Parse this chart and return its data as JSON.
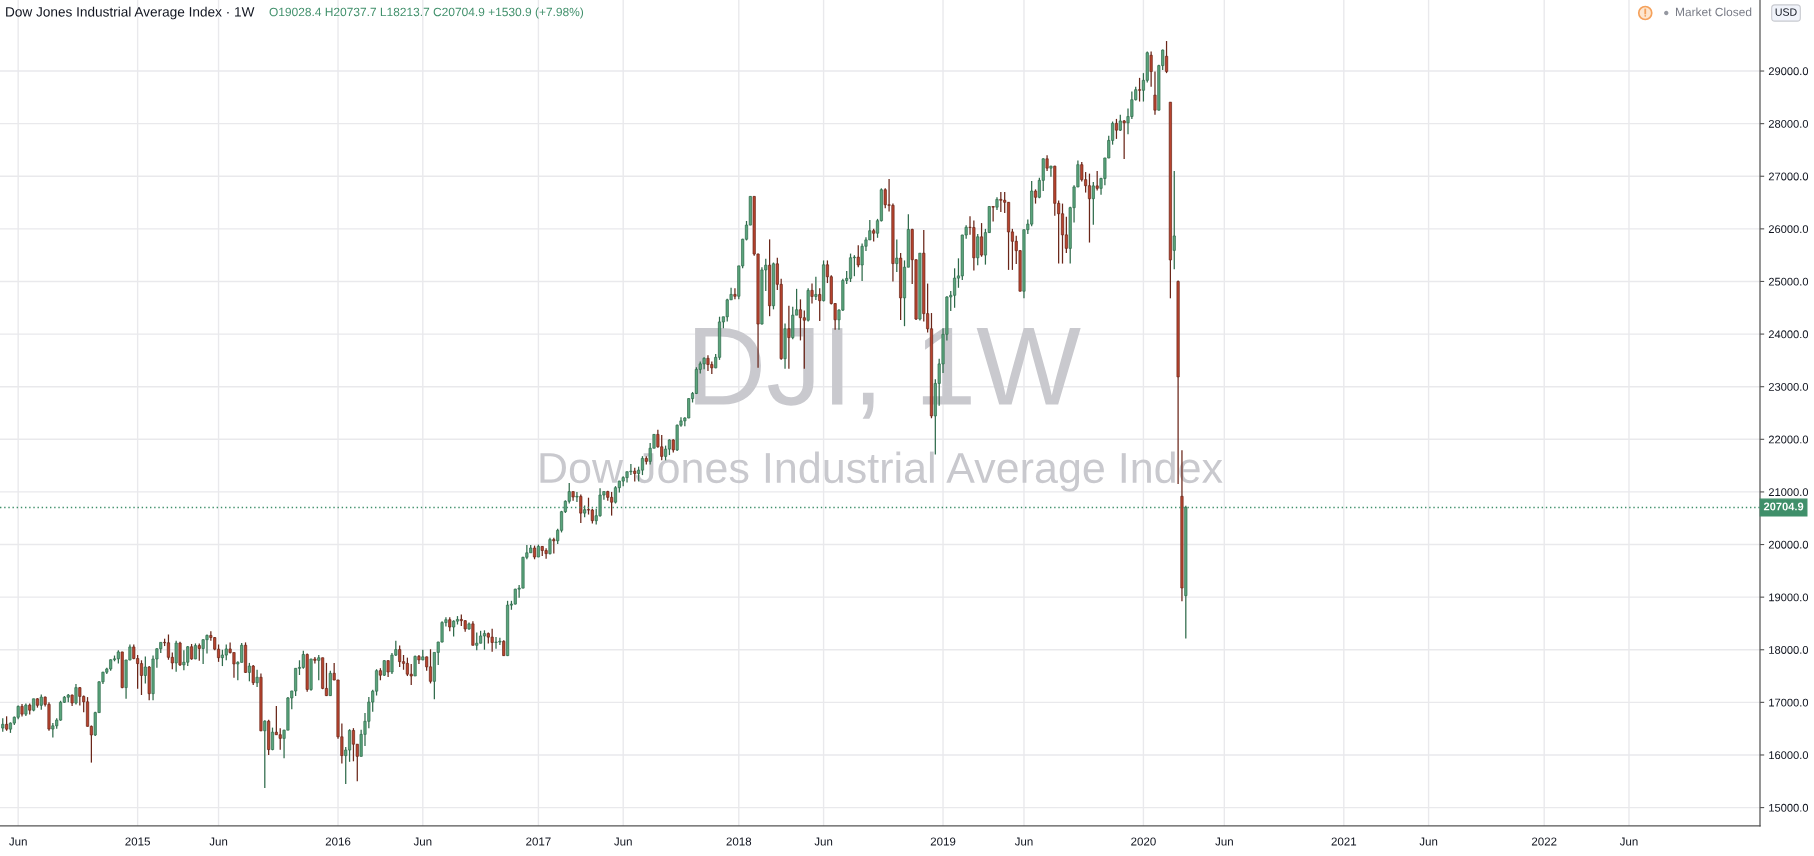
{
  "chart_data": {
    "type": "candlestick",
    "title": "Dow Jones Industrial Average Index · 1W",
    "subtitle": "O19028.4 H20737.7 L18213.7 C20704.9 +1530.9 (+7.98%)",
    "ylabel": "USD",
    "annotations": [
      "Market Closed",
      "DJI, 1W",
      "Dow Jones Industrial Average Index"
    ],
    "xlim": [
      "2014-04-30",
      "2023-01-30"
    ],
    "ylim": [
      14650,
      30350
    ],
    "xticks": [
      {
        "value": "2014-06-02",
        "label": "Jun"
      },
      {
        "value": "2015-01-05",
        "label": "2015"
      },
      {
        "value": "2015-06-01",
        "label": "Jun"
      },
      {
        "value": "2016-01-04",
        "label": "2016"
      },
      {
        "value": "2016-06-06",
        "label": "Jun"
      },
      {
        "value": "2017-01-02",
        "label": "2017"
      },
      {
        "value": "2017-06-05",
        "label": "Jun"
      },
      {
        "value": "2018-01-01",
        "label": "2018"
      },
      {
        "value": "2018-06-04",
        "label": "Jun"
      },
      {
        "value": "2019-01-07",
        "label": "2019"
      },
      {
        "value": "2019-06-03",
        "label": "Jun"
      },
      {
        "value": "2020-01-06",
        "label": "2020"
      },
      {
        "value": "2020-06-01",
        "label": "Jun"
      },
      {
        "value": "2021-01-04",
        "label": "2021"
      },
      {
        "value": "2021-06-07",
        "label": "Jun"
      },
      {
        "value": "2022-01-03",
        "label": "2022"
      },
      {
        "value": "2022-06-06",
        "label": "Jun"
      }
    ],
    "yticks": [
      {
        "value": 15000,
        "label": "15000.0"
      },
      {
        "value": 16000,
        "label": "16000.0"
      },
      {
        "value": 17000,
        "label": "17000.0"
      },
      {
        "value": 18000,
        "label": "18000.0"
      },
      {
        "value": 19000,
        "label": "19000.0"
      },
      {
        "value": 20000,
        "label": "20000.0"
      },
      {
        "value": 21000,
        "label": "21000.0"
      },
      {
        "value": 22000,
        "label": "22000.0"
      },
      {
        "value": 23000,
        "label": "23000.0"
      },
      {
        "value": 24000,
        "label": "24000.0"
      },
      {
        "value": 25000,
        "label": "25000.0"
      },
      {
        "value": 26000,
        "label": "26000.0"
      },
      {
        "value": 27000,
        "label": "27000.0"
      },
      {
        "value": 28000,
        "label": "28000.0"
      },
      {
        "value": 29000,
        "label": "29000.0"
      }
    ],
    "grid": true,
    "ref_lines": [
      {
        "axis": "y",
        "value": 20704.9,
        "label": "20704.9",
        "color": "#3f8f6a",
        "line_style": "dotted"
      }
    ],
    "x": [
      "2014-05-05",
      "2014-05-12",
      "2014-05-19",
      "2014-05-26",
      "2014-06-02",
      "2014-06-09",
      "2014-06-16",
      "2014-06-23",
      "2014-06-30",
      "2014-07-07",
      "2014-07-14",
      "2014-07-21",
      "2014-07-28",
      "2014-08-04",
      "2014-08-11",
      "2014-08-18",
      "2014-08-25",
      "2014-09-01",
      "2014-09-08",
      "2014-09-15",
      "2014-09-22",
      "2014-09-29",
      "2014-10-06",
      "2014-10-13",
      "2014-10-20",
      "2014-10-27",
      "2014-11-03",
      "2014-11-10",
      "2014-11-17",
      "2014-11-24",
      "2014-12-01",
      "2014-12-08",
      "2014-12-15",
      "2014-12-22",
      "2014-12-29",
      "2015-01-05",
      "2015-01-12",
      "2015-01-19",
      "2015-01-26",
      "2015-02-02",
      "2015-02-09",
      "2015-02-16",
      "2015-02-23",
      "2015-03-02",
      "2015-03-09",
      "2015-03-16",
      "2015-03-23",
      "2015-03-30",
      "2015-04-06",
      "2015-04-13",
      "2015-04-20",
      "2015-04-27",
      "2015-05-04",
      "2015-05-11",
      "2015-05-18",
      "2015-05-25",
      "2015-06-01",
      "2015-06-08",
      "2015-06-15",
      "2015-06-22",
      "2015-06-29",
      "2015-07-06",
      "2015-07-13",
      "2015-07-20",
      "2015-07-27",
      "2015-08-03",
      "2015-08-10",
      "2015-08-17",
      "2015-08-24",
      "2015-08-31",
      "2015-09-07",
      "2015-09-14",
      "2015-09-21",
      "2015-09-28",
      "2015-10-05",
      "2015-10-12",
      "2015-10-19",
      "2015-10-26",
      "2015-11-02",
      "2015-11-09",
      "2015-11-16",
      "2015-11-23",
      "2015-11-30",
      "2015-12-07",
      "2015-12-14",
      "2015-12-21",
      "2015-12-28",
      "2016-01-04",
      "2016-01-11",
      "2016-01-18",
      "2016-01-25",
      "2016-02-01",
      "2016-02-08",
      "2016-02-15",
      "2016-02-22",
      "2016-02-29",
      "2016-03-07",
      "2016-03-14",
      "2016-03-21",
      "2016-03-28",
      "2016-04-04",
      "2016-04-11",
      "2016-04-18",
      "2016-04-25",
      "2016-05-02",
      "2016-05-09",
      "2016-05-16",
      "2016-05-23",
      "2016-05-30",
      "2016-06-06",
      "2016-06-13",
      "2016-06-20",
      "2016-06-27",
      "2016-07-04",
      "2016-07-11",
      "2016-07-18",
      "2016-07-25",
      "2016-08-01",
      "2016-08-08",
      "2016-08-15",
      "2016-08-22",
      "2016-08-29",
      "2016-09-05",
      "2016-09-12",
      "2016-09-19",
      "2016-09-26",
      "2016-10-03",
      "2016-10-10",
      "2016-10-17",
      "2016-10-24",
      "2016-10-31",
      "2016-11-07",
      "2016-11-14",
      "2016-11-21",
      "2016-11-28",
      "2016-12-05",
      "2016-12-12",
      "2016-12-19",
      "2016-12-26",
      "2017-01-02",
      "2017-01-09",
      "2017-01-16",
      "2017-01-23",
      "2017-01-30",
      "2017-02-06",
      "2017-02-13",
      "2017-02-20",
      "2017-02-27",
      "2017-03-06",
      "2017-03-13",
      "2017-03-20",
      "2017-03-27",
      "2017-04-03",
      "2017-04-10",
      "2017-04-17",
      "2017-04-24",
      "2017-05-01",
      "2017-05-08",
      "2017-05-15",
      "2017-05-22",
      "2017-05-29",
      "2017-06-05",
      "2017-06-12",
      "2017-06-19",
      "2017-06-26",
      "2017-07-03",
      "2017-07-10",
      "2017-07-17",
      "2017-07-24",
      "2017-07-31",
      "2017-08-07",
      "2017-08-14",
      "2017-08-21",
      "2017-08-28",
      "2017-09-04",
      "2017-09-11",
      "2017-09-18",
      "2017-09-25",
      "2017-10-02",
      "2017-10-09",
      "2017-10-16",
      "2017-10-23",
      "2017-10-30",
      "2017-11-06",
      "2017-11-13",
      "2017-11-20",
      "2017-11-27",
      "2017-12-04",
      "2017-12-11",
      "2017-12-18",
      "2017-12-25",
      "2018-01-01",
      "2018-01-08",
      "2018-01-15",
      "2018-01-22",
      "2018-01-29",
      "2018-02-05",
      "2018-02-12",
      "2018-02-19",
      "2018-02-26",
      "2018-03-05",
      "2018-03-12",
      "2018-03-19",
      "2018-03-26",
      "2018-04-02",
      "2018-04-09",
      "2018-04-16",
      "2018-04-23",
      "2018-04-30",
      "2018-05-07",
      "2018-05-14",
      "2018-05-21",
      "2018-05-28",
      "2018-06-04",
      "2018-06-11",
      "2018-06-18",
      "2018-06-25",
      "2018-07-02",
      "2018-07-09",
      "2018-07-16",
      "2018-07-23",
      "2018-07-30",
      "2018-08-06",
      "2018-08-13",
      "2018-08-20",
      "2018-08-27",
      "2018-09-03",
      "2018-09-10",
      "2018-09-17",
      "2018-09-24",
      "2018-10-01",
      "2018-10-08",
      "2018-10-15",
      "2018-10-22",
      "2018-10-29",
      "2018-11-05",
      "2018-11-12",
      "2018-11-19",
      "2018-11-26",
      "2018-12-03",
      "2018-12-10",
      "2018-12-17",
      "2018-12-24",
      "2018-12-31",
      "2019-01-07",
      "2019-01-14",
      "2019-01-21",
      "2019-01-28",
      "2019-02-04",
      "2019-02-11",
      "2019-02-18",
      "2019-02-25",
      "2019-03-04",
      "2019-03-11",
      "2019-03-18",
      "2019-03-25",
      "2019-04-01",
      "2019-04-08",
      "2019-04-15",
      "2019-04-22",
      "2019-04-29",
      "2019-05-06",
      "2019-05-13",
      "2019-05-20",
      "2019-05-27",
      "2019-06-03",
      "2019-06-10",
      "2019-06-17",
      "2019-06-24",
      "2019-07-01",
      "2019-07-08",
      "2019-07-15",
      "2019-07-22",
      "2019-07-29",
      "2019-08-05",
      "2019-08-12",
      "2019-08-19",
      "2019-08-26",
      "2019-09-02",
      "2019-09-09",
      "2019-09-16",
      "2019-09-23",
      "2019-09-30",
      "2019-10-07",
      "2019-10-14",
      "2019-10-21",
      "2019-10-28",
      "2019-11-04",
      "2019-11-11",
      "2019-11-18",
      "2019-11-25",
      "2019-12-02",
      "2019-12-09",
      "2019-12-16",
      "2019-12-23",
      "2019-12-30",
      "2020-01-06",
      "2020-01-13",
      "2020-01-20",
      "2020-01-27",
      "2020-02-03",
      "2020-02-10",
      "2020-02-17",
      "2020-02-24",
      "2020-03-02",
      "2020-03-09",
      "2020-03-16",
      "2020-03-23"
    ],
    "ohlc": [
      [
        16512,
        16700,
        16440,
        16583
      ],
      [
        16583,
        16735,
        16460,
        16491
      ],
      [
        16491,
        16620,
        16420,
        16606
      ],
      [
        16606,
        16730,
        16570,
        16717
      ],
      [
        16717,
        16940,
        16680,
        16924
      ],
      [
        16924,
        16970,
        16730,
        16776
      ],
      [
        16776,
        16980,
        16740,
        16948
      ],
      [
        16948,
        16980,
        16770,
        16851
      ],
      [
        16851,
        17070,
        16830,
        17068
      ],
      [
        17068,
        17080,
        16900,
        16944
      ],
      [
        16944,
        17150,
        16860,
        17100
      ],
      [
        17100,
        17110,
        16920,
        16961
      ],
      [
        16961,
        17000,
        16460,
        16493
      ],
      [
        16493,
        16610,
        16330,
        16554
      ],
      [
        16554,
        16700,
        16500,
        16663
      ],
      [
        16663,
        17030,
        16650,
        17001
      ],
      [
        17001,
        17120,
        16990,
        17098
      ],
      [
        17098,
        17160,
        17000,
        17138
      ],
      [
        17138,
        17150,
        16930,
        16988
      ],
      [
        16988,
        17350,
        16960,
        17280
      ],
      [
        17280,
        17290,
        16940,
        17113
      ],
      [
        17113,
        17130,
        16810,
        17010
      ],
      [
        17010,
        17100,
        16540,
        16544
      ],
      [
        16544,
        16560,
        15855,
        16380
      ],
      [
        16380,
        16820,
        16360,
        16805
      ],
      [
        16805,
        17400,
        16800,
        17391
      ],
      [
        17391,
        17580,
        17350,
        17573
      ],
      [
        17573,
        17660,
        17540,
        17635
      ],
      [
        17635,
        17820,
        17600,
        17810
      ],
      [
        17810,
        17890,
        17780,
        17828
      ],
      [
        17828,
        17990,
        17740,
        17958
      ],
      [
        17958,
        17960,
        17270,
        17281
      ],
      [
        17281,
        17810,
        17070,
        17805
      ],
      [
        17805,
        18100,
        17800,
        18053
      ],
      [
        18053,
        18100,
        17820,
        17833
      ],
      [
        17833,
        17900,
        17260,
        17737
      ],
      [
        17737,
        17800,
        17140,
        17511
      ],
      [
        17511,
        17870,
        17360,
        17672
      ],
      [
        17672,
        17690,
        17040,
        17165
      ],
      [
        17165,
        17890,
        17040,
        17824
      ],
      [
        17824,
        18030,
        17660,
        18019
      ],
      [
        18019,
        18140,
        17940,
        18140
      ],
      [
        18140,
        18210,
        18070,
        18133
      ],
      [
        18133,
        18290,
        17810,
        17856
      ],
      [
        17856,
        17950,
        17630,
        17749
      ],
      [
        17749,
        18170,
        17580,
        18128
      ],
      [
        18128,
        18150,
        17690,
        17713
      ],
      [
        17713,
        17990,
        17610,
        17763
      ],
      [
        17763,
        18070,
        17690,
        18057
      ],
      [
        18057,
        18110,
        17810,
        17826
      ],
      [
        17826,
        18120,
        17820,
        18080
      ],
      [
        18080,
        18120,
        17790,
        18024
      ],
      [
        18024,
        18200,
        17730,
        18191
      ],
      [
        18191,
        18290,
        17930,
        18272
      ],
      [
        18272,
        18350,
        18170,
        18232
      ],
      [
        18232,
        18240,
        17990,
        18011
      ],
      [
        18011,
        18100,
        17770,
        17849
      ],
      [
        17849,
        18000,
        17690,
        17899
      ],
      [
        17899,
        18100,
        17800,
        18015
      ],
      [
        18015,
        18140,
        17930,
        17947
      ],
      [
        17947,
        17950,
        17470,
        17730
      ],
      [
        17730,
        17780,
        17420,
        17760
      ],
      [
        17760,
        18130,
        17760,
        18086
      ],
      [
        18086,
        18140,
        17560,
        17569
      ],
      [
        17569,
        17750,
        17400,
        17690
      ],
      [
        17690,
        17710,
        17330,
        17373
      ],
      [
        17373,
        17620,
        17290,
        17477
      ],
      [
        17477,
        17550,
        16450,
        16460
      ],
      [
        16460,
        16660,
        15370,
        16643
      ],
      [
        16643,
        16670,
        16000,
        16102
      ],
      [
        16102,
        16520,
        16090,
        16433
      ],
      [
        16433,
        16930,
        16380,
        16385
      ],
      [
        16385,
        16510,
        16100,
        16315
      ],
      [
        16315,
        16480,
        15940,
        16472
      ],
      [
        16472,
        17100,
        16470,
        17084
      ],
      [
        17084,
        17220,
        16870,
        17216
      ],
      [
        17216,
        17650,
        17120,
        17647
      ],
      [
        17647,
        17800,
        17520,
        17664
      ],
      [
        17664,
        17980,
        17640,
        17910
      ],
      [
        17910,
        17930,
        17200,
        17245
      ],
      [
        17245,
        17830,
        17220,
        17824
      ],
      [
        17824,
        17860,
        17740,
        17798
      ],
      [
        17798,
        17900,
        17420,
        17848
      ],
      [
        17848,
        17850,
        17250,
        17265
      ],
      [
        17265,
        17750,
        17120,
        17128
      ],
      [
        17128,
        17600,
        17120,
        17553
      ],
      [
        17553,
        17750,
        17420,
        17425
      ],
      [
        17425,
        17430,
        16310,
        16346
      ],
      [
        16346,
        16600,
        15840,
        15988
      ],
      [
        15988,
        16150,
        15450,
        16094
      ],
      [
        16094,
        16490,
        15870,
        16466
      ],
      [
        16466,
        16510,
        15880,
        16205
      ],
      [
        16205,
        16210,
        15500,
        15974
      ],
      [
        15974,
        16480,
        15970,
        16392
      ],
      [
        16392,
        16800,
        16170,
        16640
      ],
      [
        16640,
        17100,
        16510,
        17006
      ],
      [
        17006,
        17240,
        16820,
        17213
      ],
      [
        17213,
        17630,
        17130,
        17602
      ],
      [
        17602,
        17650,
        17420,
        17516
      ],
      [
        17516,
        17800,
        17500,
        17793
      ],
      [
        17793,
        17800,
        17480,
        17577
      ],
      [
        17577,
        17940,
        17540,
        17898
      ],
      [
        17898,
        18170,
        17880,
        18004
      ],
      [
        18004,
        18080,
        17670,
        17774
      ],
      [
        17774,
        17900,
        17620,
        17741
      ],
      [
        17741,
        17850,
        17500,
        17535
      ],
      [
        17535,
        17730,
        17330,
        17501
      ],
      [
        17501,
        17890,
        17500,
        17873
      ],
      [
        17873,
        17900,
        17730,
        17807
      ],
      [
        17807,
        18000,
        17800,
        17865
      ],
      [
        17865,
        17870,
        17600,
        17675
      ],
      [
        17675,
        18010,
        17360,
        17400
      ],
      [
        17400,
        17950,
        17060,
        17949
      ],
      [
        17949,
        18150,
        17710,
        18147
      ],
      [
        18147,
        18540,
        18140,
        18517
      ],
      [
        18517,
        18620,
        18440,
        18571
      ],
      [
        18571,
        18620,
        18350,
        18432
      ],
      [
        18432,
        18560,
        18250,
        18544
      ],
      [
        18544,
        18640,
        18480,
        18576
      ],
      [
        18576,
        18670,
        18450,
        18553
      ],
      [
        18553,
        18560,
        18340,
        18395
      ],
      [
        18395,
        18520,
        18380,
        18492
      ],
      [
        18492,
        18540,
        18080,
        18085
      ],
      [
        18085,
        18330,
        17990,
        18124
      ],
      [
        18124,
        18360,
        18120,
        18262
      ],
      [
        18262,
        18370,
        18000,
        18308
      ],
      [
        18308,
        18330,
        18120,
        18240
      ],
      [
        18240,
        18400,
        17960,
        18138
      ],
      [
        18138,
        18240,
        18020,
        18146
      ],
      [
        18146,
        18230,
        18090,
        18161
      ],
      [
        18161,
        18180,
        17880,
        17888
      ],
      [
        17888,
        18930,
        17880,
        18848
      ],
      [
        18848,
        18930,
        18760,
        18868
      ],
      [
        18868,
        19160,
        18860,
        19152
      ],
      [
        19152,
        19230,
        18990,
        19171
      ],
      [
        19171,
        19770,
        19170,
        19757
      ],
      [
        19757,
        19990,
        19720,
        19843
      ],
      [
        19843,
        19990,
        19840,
        19934
      ],
      [
        19934,
        19980,
        19720,
        19763
      ],
      [
        19763,
        19999,
        19760,
        19964
      ],
      [
        19964,
        19970,
        19780,
        19886
      ],
      [
        19886,
        19930,
        19730,
        19827
      ],
      [
        19827,
        20130,
        19810,
        20094
      ],
      [
        20094,
        20130,
        19830,
        20071
      ],
      [
        20071,
        20300,
        20010,
        20270
      ],
      [
        20270,
        20640,
        20230,
        20624
      ],
      [
        20624,
        20840,
        20600,
        20822
      ],
      [
        20822,
        21170,
        20780,
        21006
      ],
      [
        21006,
        21010,
        20830,
        20903
      ],
      [
        20903,
        21000,
        20810,
        20915
      ],
      [
        20915,
        20950,
        20410,
        20597
      ],
      [
        20597,
        20740,
        20520,
        20663
      ],
      [
        20663,
        20890,
        20570,
        20656
      ],
      [
        20656,
        20680,
        20400,
        20453
      ],
      [
        20453,
        20680,
        20380,
        20548
      ],
      [
        20548,
        21070,
        20530,
        20941
      ],
      [
        20941,
        21010,
        20850,
        21007
      ],
      [
        21007,
        21020,
        20830,
        20897
      ],
      [
        20897,
        21000,
        20550,
        20805
      ],
      [
        20805,
        21110,
        20780,
        21080
      ],
      [
        21080,
        21210,
        20990,
        21206
      ],
      [
        21206,
        21300,
        21110,
        21272
      ],
      [
        21272,
        21390,
        21180,
        21384
      ],
      [
        21384,
        21530,
        21320,
        21395
      ],
      [
        21395,
        21460,
        21200,
        21350
      ],
      [
        21350,
        21480,
        21200,
        21414
      ],
      [
        21414,
        21680,
        21320,
        21638
      ],
      [
        21638,
        21680,
        21520,
        21580
      ],
      [
        21580,
        21930,
        21520,
        21830
      ],
      [
        21830,
        22100,
        21830,
        22093
      ],
      [
        22093,
        22180,
        21840,
        21858
      ],
      [
        21858,
        22080,
        21600,
        21675
      ],
      [
        21675,
        21880,
        21600,
        21814
      ],
      [
        21814,
        22000,
        21700,
        21988
      ],
      [
        21988,
        22000,
        21750,
        21798
      ],
      [
        21798,
        22280,
        21780,
        22268
      ],
      [
        22268,
        22420,
        22240,
        22350
      ],
      [
        22350,
        22420,
        22250,
        22405
      ],
      [
        22405,
        22780,
        22400,
        22774
      ],
      [
        22774,
        22900,
        22700,
        22871
      ],
      [
        22871,
        23370,
        22860,
        23329
      ],
      [
        23329,
        23480,
        23250,
        23434
      ],
      [
        23434,
        23560,
        23330,
        23539
      ],
      [
        23539,
        23600,
        23300,
        23422
      ],
      [
        23422,
        23480,
        23240,
        23358
      ],
      [
        23358,
        23620,
        23350,
        23558
      ],
      [
        23558,
        24330,
        23510,
        24231
      ],
      [
        24231,
        24330,
        24110,
        24329
      ],
      [
        24329,
        24670,
        24240,
        24651
      ],
      [
        24651,
        24880,
        24650,
        24754
      ],
      [
        24754,
        24870,
        24660,
        24719
      ],
      [
        24719,
        25300,
        24660,
        25296
      ],
      [
        25296,
        25810,
        25250,
        25803
      ],
      [
        25803,
        26150,
        25780,
        26072
      ],
      [
        26072,
        26620,
        26070,
        26617
      ],
      [
        26617,
        26620,
        25490,
        25521
      ],
      [
        25521,
        25530,
        23360,
        24191
      ],
      [
        24191,
        25270,
        24180,
        25219
      ],
      [
        25219,
        25430,
        24820,
        25310
      ],
      [
        25310,
        25800,
        24340,
        24538
      ],
      [
        24538,
        25360,
        24470,
        25336
      ],
      [
        25336,
        25450,
        24840,
        24946
      ],
      [
        24946,
        25050,
        23510,
        23533
      ],
      [
        23533,
        24200,
        23340,
        24103
      ],
      [
        24103,
        24540,
        23340,
        23933
      ],
      [
        23933,
        24520,
        23900,
        24360
      ],
      [
        24360,
        24860,
        24360,
        24463
      ],
      [
        24463,
        24660,
        23880,
        24311
      ],
      [
        24311,
        24450,
        23340,
        24263
      ],
      [
        24263,
        24870,
        24240,
        24831
      ],
      [
        24831,
        24960,
        24580,
        24715
      ],
      [
        24715,
        25090,
        24650,
        24753
      ],
      [
        24753,
        24870,
        24250,
        24635
      ],
      [
        24635,
        25400,
        24620,
        25317
      ],
      [
        25317,
        25400,
        24970,
        25090
      ],
      [
        25090,
        25120,
        24560,
        24581
      ],
      [
        24581,
        24590,
        24080,
        24271
      ],
      [
        24271,
        24470,
        24080,
        24456
      ],
      [
        24456,
        25050,
        24440,
        25019
      ],
      [
        25019,
        25200,
        24950,
        25058
      ],
      [
        25058,
        25530,
        24990,
        25451
      ],
      [
        25451,
        25500,
        25100,
        25463
      ],
      [
        25463,
        25690,
        25270,
        25313
      ],
      [
        25313,
        25720,
        25010,
        25669
      ],
      [
        25669,
        25840,
        25580,
        25790
      ],
      [
        25790,
        26170,
        25790,
        25965
      ],
      [
        25965,
        26000,
        25760,
        25917
      ],
      [
        25917,
        26190,
        25830,
        26155
      ],
      [
        26155,
        26770,
        26140,
        26744
      ],
      [
        26744,
        26770,
        26390,
        26458
      ],
      [
        26458,
        26950,
        26330,
        26447
      ],
      [
        26447,
        26480,
        25000,
        25340
      ],
      [
        25340,
        25800,
        25180,
        25444
      ],
      [
        25444,
        25540,
        24270,
        24688
      ],
      [
        24688,
        25400,
        24150,
        25271
      ],
      [
        25271,
        26280,
        25270,
        25989
      ],
      [
        25989,
        26000,
        24950,
        25413
      ],
      [
        25413,
        25420,
        24270,
        24286
      ],
      [
        24286,
        25540,
        24260,
        25538
      ],
      [
        25538,
        25980,
        24240,
        24389
      ],
      [
        24389,
        24960,
        24030,
        24101
      ],
      [
        24101,
        24400,
        22400,
        22445
      ],
      [
        22445,
        23140,
        21710,
        23062
      ],
      [
        23062,
        23530,
        22640,
        23433
      ],
      [
        23433,
        24110,
        23260,
        23996
      ],
      [
        23996,
        24720,
        23880,
        24706
      ],
      [
        24706,
        24820,
        24440,
        24737
      ],
      [
        24737,
        25250,
        24500,
        25064
      ],
      [
        25064,
        25440,
        24880,
        25106
      ],
      [
        25106,
        25890,
        25030,
        25883
      ],
      [
        25883,
        26070,
        25810,
        26031
      ],
      [
        26031,
        26240,
        25890,
        26026
      ],
      [
        26026,
        26160,
        25210,
        25450
      ],
      [
        25450,
        25900,
        25310,
        25849
      ],
      [
        25849,
        26110,
        25470,
        25502
      ],
      [
        25502,
        26000,
        25320,
        25929
      ],
      [
        25929,
        26430,
        25920,
        26425
      ],
      [
        26425,
        26430,
        26140,
        26412
      ],
      [
        26412,
        26600,
        26360,
        26560
      ],
      [
        26560,
        26700,
        26320,
        26543
      ],
      [
        26543,
        26700,
        26300,
        26505
      ],
      [
        26505,
        26510,
        25220,
        25942
      ],
      [
        25942,
        26000,
        25220,
        25764
      ],
      [
        25764,
        25870,
        25330,
        25586
      ],
      [
        25586,
        25600,
        24810,
        24815
      ],
      [
        24815,
        25990,
        24680,
        25984
      ],
      [
        25984,
        26180,
        25900,
        26090
      ],
      [
        26090,
        26910,
        26050,
        26719
      ],
      [
        26719,
        26750,
        26480,
        26600
      ],
      [
        26600,
        26970,
        26580,
        26922
      ],
      [
        26922,
        27340,
        26720,
        27332
      ],
      [
        27332,
        27400,
        27100,
        27154
      ],
      [
        27154,
        27200,
        26990,
        27192
      ],
      [
        27192,
        27200,
        26250,
        26485
      ],
      [
        26485,
        26540,
        25340,
        26287
      ],
      [
        26287,
        26480,
        25340,
        25886
      ],
      [
        25886,
        26230,
        25540,
        25629
      ],
      [
        25629,
        26420,
        25340,
        26403
      ],
      [
        26403,
        26830,
        26120,
        26797
      ],
      [
        26797,
        27300,
        26790,
        27220
      ],
      [
        27220,
        27270,
        26900,
        26935
      ],
      [
        26935,
        27080,
        26690,
        26820
      ],
      [
        26820,
        27050,
        25740,
        26573
      ],
      [
        26573,
        26890,
        26080,
        26817
      ],
      [
        26817,
        27100,
        26730,
        26770
      ],
      [
        26770,
        26970,
        26650,
        26958
      ],
      [
        26958,
        27350,
        26830,
        27347
      ],
      [
        27347,
        27770,
        27340,
        27681
      ],
      [
        27681,
        28040,
        27600,
        28005
      ],
      [
        28005,
        28090,
        27710,
        27876
      ],
      [
        27876,
        28170,
        27860,
        28051
      ],
      [
        28051,
        28070,
        27330,
        28015
      ],
      [
        28015,
        28290,
        27800,
        28135
      ],
      [
        28135,
        28610,
        28090,
        28455
      ],
      [
        28455,
        28700,
        28440,
        28645
      ],
      [
        28645,
        28870,
        28420,
        28634
      ],
      [
        28634,
        28960,
        28420,
        28823
      ],
      [
        28823,
        29370,
        28780,
        29348
      ],
      [
        29300,
        29370,
        28700,
        28990
      ],
      [
        28542,
        28990,
        28170,
        28256
      ],
      [
        28256,
        29120,
        28250,
        29103
      ],
      [
        29103,
        29410,
        29020,
        29398
      ],
      [
        29280,
        29570,
        28960,
        28992
      ],
      [
        28408,
        28410,
        24680,
        25409
      ],
      [
        25591,
        27100,
        25230,
        25865
      ],
      [
        25000,
        25020,
        21150,
        23186
      ],
      [
        20917,
        21790,
        18920,
        19174
      ],
      [
        19028.4,
        20737.7,
        18213.7,
        20704.9
      ]
    ]
  }
}
